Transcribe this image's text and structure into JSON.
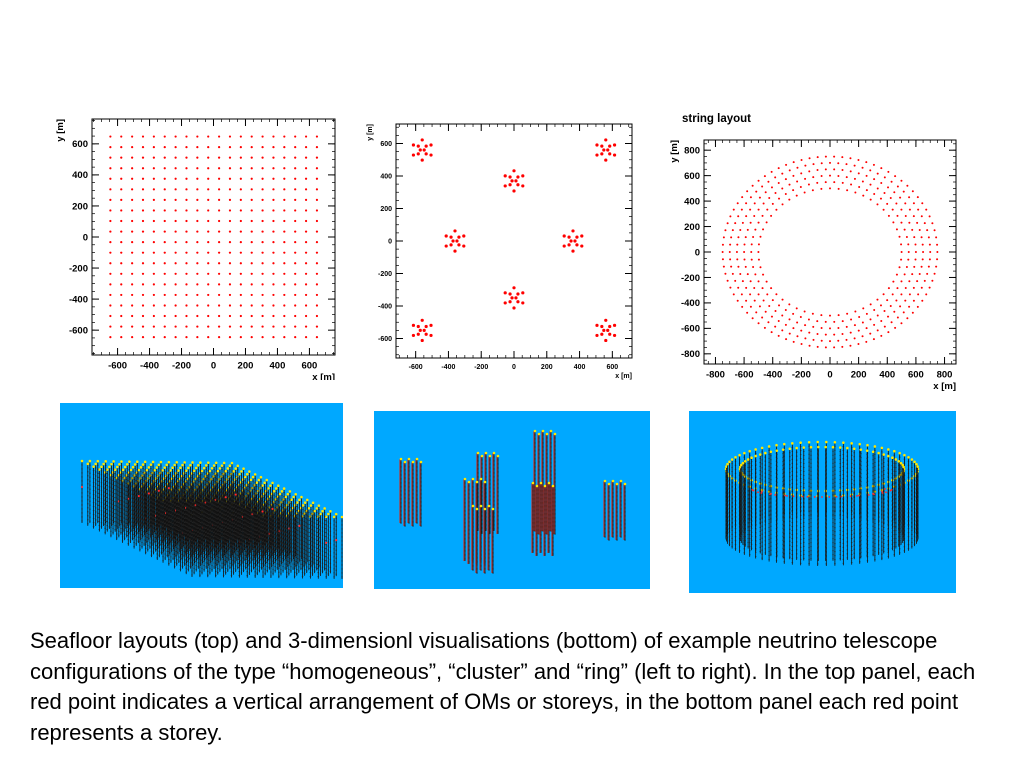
{
  "chart_data": [
    {
      "type": "scatter",
      "layout": "homogeneous",
      "title": "",
      "xlabel": "x [m]",
      "ylabel": "y [m]",
      "xlim": [
        -760,
        760
      ],
      "ylim": [
        -760,
        760
      ],
      "xticks": [
        -600,
        -400,
        -200,
        0,
        200,
        400,
        600
      ],
      "yticks": [
        -600,
        -400,
        -200,
        0,
        200,
        400,
        600
      ],
      "grid": {
        "type": "square",
        "nx": 20,
        "ny": 20,
        "spacing": 68,
        "min": -645,
        "max": 645
      },
      "marker_color": "#ff0000"
    },
    {
      "type": "scatter",
      "layout": "cluster",
      "title": "",
      "xlabel": "x [m]",
      "ylabel": "y [m]",
      "xlim": [
        -720,
        720
      ],
      "ylim": [
        -720,
        720
      ],
      "xticks": [
        -600,
        -400,
        -200,
        0,
        200,
        400,
        600
      ],
      "yticks": [
        -600,
        -400,
        -200,
        0,
        200,
        400,
        600
      ],
      "cluster_centers": [
        [
          -560,
          560
        ],
        [
          560,
          560
        ],
        [
          0,
          370
        ],
        [
          -360,
          0
        ],
        [
          360,
          0
        ],
        [
          0,
          -350
        ],
        [
          -560,
          -550
        ],
        [
          560,
          -550
        ]
      ],
      "cluster_pattern": "12 strings: centre pair, inner ring of 4, outer ring of 6, radius ≈ 60 m",
      "marker_color": "#ff0000"
    },
    {
      "type": "scatter",
      "layout": "ring",
      "title": "string layout",
      "xlabel": "x [m]",
      "ylabel": "y [m]",
      "xlim": [
        -880,
        880
      ],
      "ylim": [
        -880,
        880
      ],
      "xticks": [
        -800,
        -600,
        -400,
        -200,
        0,
        200,
        400,
        600,
        800
      ],
      "yticks": [
        -800,
        -600,
        -400,
        -200,
        0,
        200,
        400,
        600,
        800
      ],
      "rings": [
        {
          "radius": 500,
          "count": 52
        },
        {
          "radius": 550,
          "count": 58
        },
        {
          "radius": 600,
          "count": 64
        },
        {
          "radius": 650,
          "count": 70
        },
        {
          "radius": 700,
          "count": 76
        },
        {
          "radius": 750,
          "count": 82
        }
      ],
      "marker_color": "#ff0000"
    }
  ],
  "visualisations": [
    {
      "label": "homogeneous",
      "background": "#00a8ff"
    },
    {
      "label": "cluster",
      "background": "#00a8ff"
    },
    {
      "label": "ring",
      "background": "#00a8ff"
    }
  ],
  "caption": "Seafloor layouts (top) and 3-dimensionl visualisations (bottom) of example neutrino telescope configurations of the type “homogeneous”, “cluster” and “ring” (left to right). In the top panel, each red point indicates a vertical arrangement of OMs or storeys, in the bottom panel each red point represents a storey."
}
